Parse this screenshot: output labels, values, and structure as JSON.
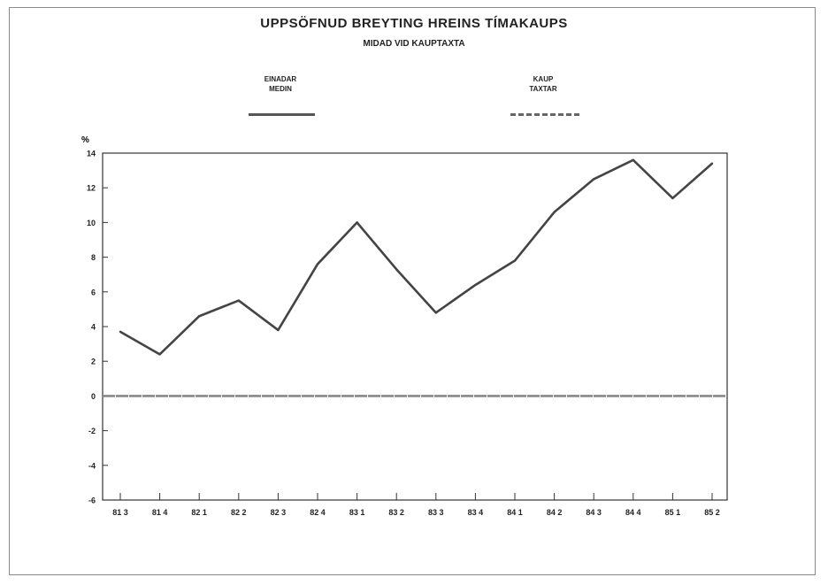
{
  "title": "UPPSÖFNUD BREYTING HREINS TÍMAKAUPS",
  "subtitle": "MIDAD VID KAUPTAXTA",
  "legend": [
    {
      "line1": "EINADAR",
      "line2": "MEDIN",
      "style": "solid"
    },
    {
      "line1": "KAUP",
      "line2": "TAXTAR",
      "style": "dashed"
    }
  ],
  "chart_data": {
    "type": "line",
    "ylabel": "%",
    "ylim": [
      -6,
      14
    ],
    "yticks": [
      "14",
      "12",
      "10",
      "8",
      "6",
      "4",
      "2",
      "0",
      "-2",
      "-4",
      "-6"
    ],
    "categories": [
      "81 3",
      "81 4",
      "82 1",
      "82 2",
      "82 3",
      "82 4",
      "83 1",
      "83 2",
      "83 3",
      "83 4",
      "84 1",
      "84 2",
      "84 3",
      "84 4",
      "85 1",
      "85 2"
    ],
    "series": [
      {
        "name": "EINADAR MEDIN",
        "style": "solid",
        "color": "#444444",
        "values": [
          3.7,
          2.4,
          4.6,
          5.5,
          3.8,
          7.6,
          10.0,
          7.3,
          4.8,
          6.4,
          7.8,
          10.6,
          12.5,
          13.6,
          11.4,
          13.4
        ]
      },
      {
        "name": "KAUP TAXTAR",
        "style": "dashed",
        "color": "#888888",
        "values": [
          0,
          0,
          0,
          0,
          0,
          0,
          0,
          0,
          0,
          0,
          0,
          0,
          0,
          0,
          0,
          0
        ]
      }
    ]
  }
}
